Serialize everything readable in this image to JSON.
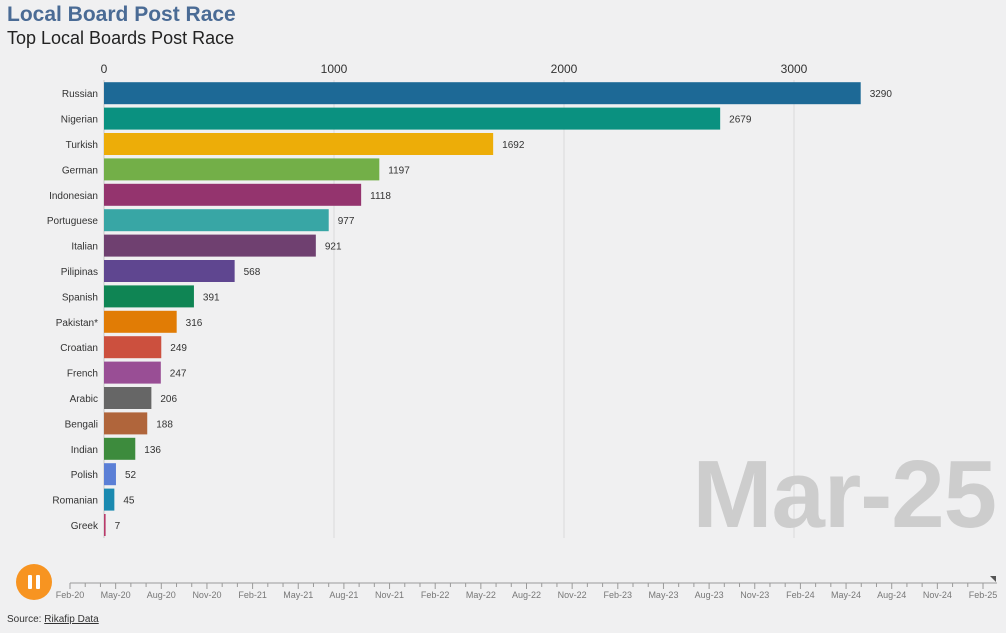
{
  "header": {
    "title": "Local Board Post Race",
    "subtitle": "Top Local Boards Post Race"
  },
  "current_date": "Mar-25",
  "source": {
    "prefix": "Source: ",
    "link_label": "Rikafip Data"
  },
  "colors": {
    "background": "#f0f0f1",
    "title": "#4a6b95",
    "big_date": "#cdcdcd",
    "play_button": "#f79421"
  },
  "chart_data": {
    "type": "bar",
    "orientation": "horizontal",
    "categories": [
      "Russian",
      "Nigerian",
      "Turkish",
      "German",
      "Indonesian",
      "Portuguese",
      "Italian",
      "Pilipinas",
      "Spanish",
      "Pakistan*",
      "Croatian",
      "French",
      "Arabic",
      "Bengali",
      "Indian",
      "Polish",
      "Romanian",
      "Greek"
    ],
    "values": [
      3290,
      2679,
      1692,
      1197,
      1118,
      977,
      921,
      568,
      391,
      316,
      249,
      247,
      206,
      188,
      136,
      52,
      45,
      7
    ],
    "colors": [
      "#1d6996",
      "#0a9180",
      "#edad08",
      "#73af48",
      "#94346e",
      "#38a6a5",
      "#6f4070",
      "#5f4690",
      "#0f8554",
      "#e17c05",
      "#cc503e",
      "#994e95",
      "#666666",
      "#b0653b",
      "#3d8b3d",
      "#5b7fd6",
      "#1b8ab0",
      "#b83a6a"
    ],
    "xlim": [
      0,
      3300
    ],
    "xticks": [
      0,
      1000,
      2000,
      3000
    ],
    "grid": true,
    "timeline": {
      "labels": [
        "Feb-20",
        "May-20",
        "Aug-20",
        "Nov-20",
        "Feb-21",
        "May-21",
        "Aug-21",
        "Nov-21",
        "Feb-22",
        "May-22",
        "Aug-22",
        "Nov-22",
        "Feb-23",
        "May-23",
        "Aug-23",
        "Nov-23",
        "Feb-24",
        "May-24",
        "Aug-24",
        "Nov-24",
        "Feb-25"
      ],
      "progress": 1.0
    }
  }
}
